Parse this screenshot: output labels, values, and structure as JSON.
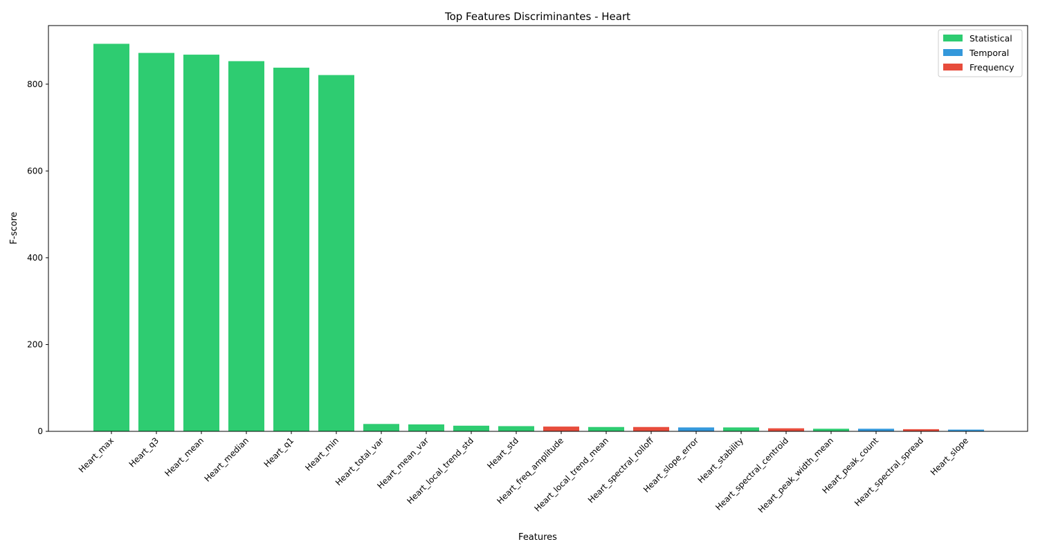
{
  "chart_data": {
    "type": "bar",
    "title": "Top Features Discriminantes - Heart",
    "xlabel": "Features",
    "ylabel": "F-score",
    "ylim": [
      0,
      935
    ],
    "yticks": [
      0,
      200,
      400,
      600,
      800
    ],
    "grid": false,
    "legend_position": "top-right",
    "colors": {
      "Statistical": "#2ecc71",
      "Temporal": "#3498db",
      "Frequency": "#e74c3c"
    },
    "legend": [
      "Statistical",
      "Temporal",
      "Frequency"
    ],
    "categories": [
      "Heart_max",
      "Heart_q3",
      "Heart_mean",
      "Heart_median",
      "Heart_q1",
      "Heart_min",
      "Heart_total_var",
      "Heart_mean_var",
      "Heart_local_trend_std",
      "Heart_std",
      "Heart_freq_amplitude",
      "Heart_local_trend_mean",
      "Heart_spectral_rolloff",
      "Heart_slope_error",
      "Heart_stability",
      "Heart_spectral_centroid",
      "Heart_peak_width_mean",
      "Heart_peak_count",
      "Heart_spectral_spread",
      "Heart_slope"
    ],
    "values": [
      893,
      872,
      868,
      853,
      838,
      821,
      17,
      16,
      13,
      12,
      11,
      10,
      10,
      9,
      9,
      7,
      6,
      6,
      5,
      4
    ],
    "groups": [
      "Statistical",
      "Statistical",
      "Statistical",
      "Statistical",
      "Statistical",
      "Statistical",
      "Statistical",
      "Statistical",
      "Statistical",
      "Statistical",
      "Frequency",
      "Statistical",
      "Frequency",
      "Temporal",
      "Statistical",
      "Frequency",
      "Statistical",
      "Temporal",
      "Frequency",
      "Temporal"
    ]
  }
}
